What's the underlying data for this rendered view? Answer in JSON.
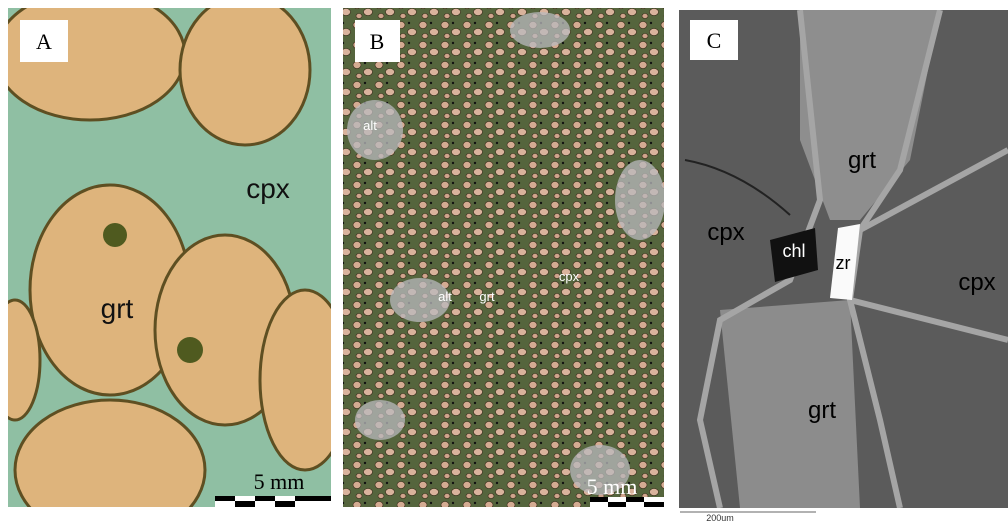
{
  "panels": [
    {
      "label": "A",
      "annotations": [
        "cpx",
        "grt"
      ],
      "scale_bar": "5 mm"
    },
    {
      "label": "B",
      "annotations": [
        "alt",
        "alt",
        "grt",
        "cpx"
      ],
      "scale_bar": "5 mm"
    },
    {
      "label": "C",
      "annotations": [
        "grt",
        "cpx",
        "chl",
        "zr",
        "cpx",
        "grt"
      ],
      "scale_bar": "200um"
    }
  ]
}
